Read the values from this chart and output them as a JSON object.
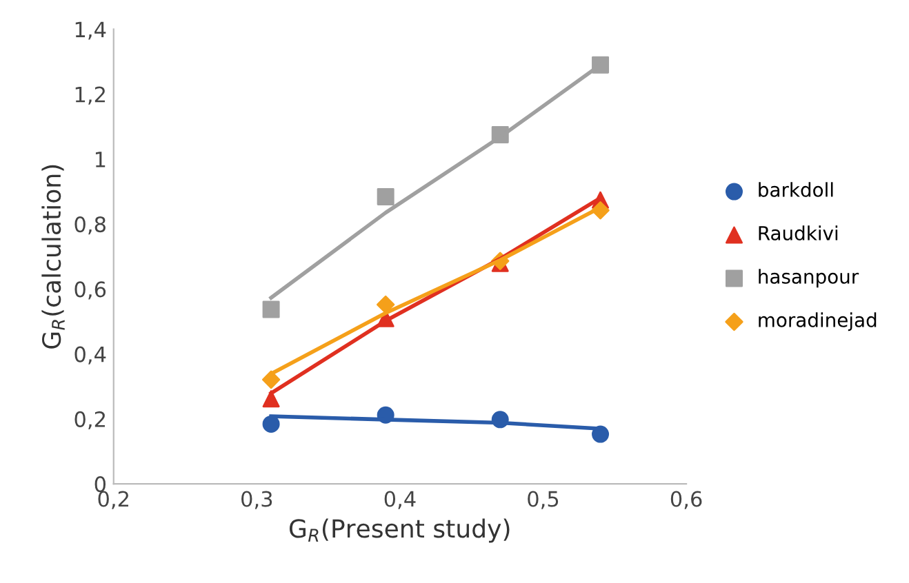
{
  "chart_data": {
    "type": "scatter",
    "xlabel": "G$_{R}$(Present study)",
    "ylabel": "G$_{R}$(calculation)",
    "x": [
      0.31,
      0.39,
      0.47,
      0.54
    ],
    "series": [
      {
        "name": "barkdoll",
        "color": "#2a5caa",
        "marker": "circle",
        "values": [
          0.184,
          0.212,
          0.198,
          0.153
        ]
      },
      {
        "name": "Raudkivi",
        "color": "#e03020",
        "marker": "triangle",
        "values": [
          0.262,
          0.509,
          0.679,
          0.874
        ]
      },
      {
        "name": "hasanpour",
        "color": "#a0a0a0",
        "marker": "square",
        "values": [
          0.537,
          0.884,
          1.075,
          1.29
        ]
      },
      {
        "name": "moradinejad",
        "color": "#f5a01a",
        "marker": "diamond",
        "values": [
          0.321,
          0.552,
          0.686,
          0.842
        ]
      },
      {
        "type": "line",
        "color": "#2a5caa",
        "values": [
          0.208,
          0.198,
          0.188,
          0.17
        ]
      },
      {
        "type": "line",
        "color": "#e03020",
        "values": [
          0.279,
          0.502,
          0.693,
          0.88
        ]
      },
      {
        "type": "line",
        "color": "#a0a0a0",
        "values": [
          0.573,
          0.835,
          1.068,
          1.29
        ]
      },
      {
        "type": "line",
        "color": "#f5a01a",
        "values": [
          0.339,
          0.526,
          0.689,
          0.851
        ]
      }
    ],
    "xlim": [
      0.2,
      0.6
    ],
    "ylim": [
      0,
      1.4
    ],
    "xticks": [
      {
        "value": 0.2,
        "label": "0,2"
      },
      {
        "value": 0.3,
        "label": "0,3"
      },
      {
        "value": 0.4,
        "label": "0,4"
      },
      {
        "value": 0.5,
        "label": "0,5"
      },
      {
        "value": 0.6,
        "label": "0,6"
      }
    ],
    "yticks": [
      0,
      {
        "value": 0.2,
        "label": "0,2"
      },
      {
        "value": 0.4,
        "label": "0,4"
      },
      {
        "value": 0.6,
        "label": "0,6"
      },
      {
        "value": 0.8,
        "label": "0,8"
      },
      1,
      {
        "value": 1.2,
        "label": "1,2"
      },
      {
        "value": 1.4,
        "label": "1,4"
      }
    ],
    "grid": false,
    "legend": "right"
  }
}
